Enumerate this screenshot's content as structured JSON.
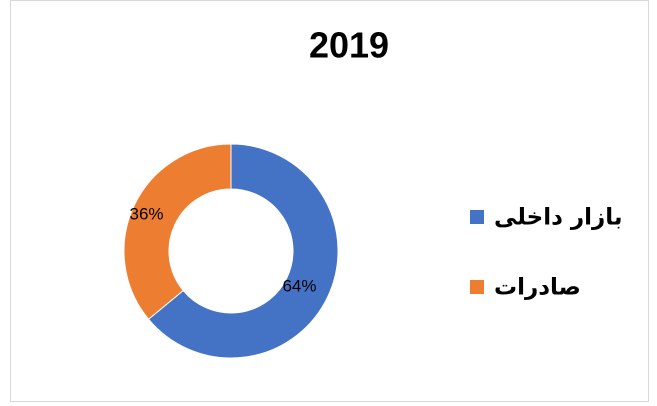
{
  "chart_data": {
    "type": "donut",
    "title": "2019",
    "categories": [
      "بازار داخلی",
      "صادرات"
    ],
    "values": [
      64,
      36
    ],
    "value_labels": [
      "64%",
      "36%"
    ],
    "colors": [
      "#4472c4",
      "#ed7d31"
    ],
    "legend": "right"
  }
}
